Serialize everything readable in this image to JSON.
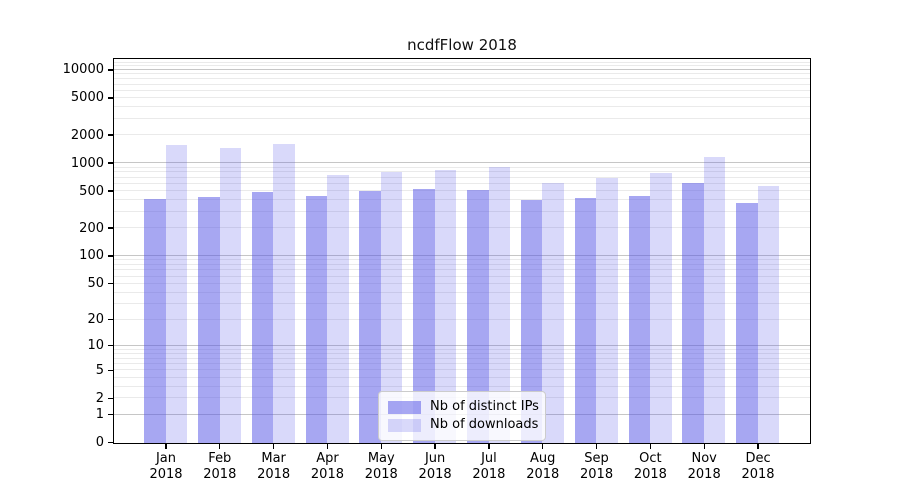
{
  "chart_data": {
    "type": "bar",
    "title": "ncdfFlow 2018",
    "categories": [
      "Jan",
      "Feb",
      "Mar",
      "Apr",
      "May",
      "Jun",
      "Jul",
      "Aug",
      "Sep",
      "Oct",
      "Nov",
      "Dec"
    ],
    "year_label": "2018",
    "series": [
      {
        "name": "Nb of distinct IPs",
        "color": "rgba(80,80,230,0.5)",
        "color_hex_on_white": "#a7a7f2",
        "values": [
          420,
          440,
          500,
          460,
          510,
          540,
          525,
          410,
          430,
          460,
          625,
          380
        ]
      },
      {
        "name": "Nb of downloads",
        "color": "rgba(80,80,230,0.22)",
        "color_hex_on_white": "#d8d8f9",
        "values": [
          1600,
          1480,
          1630,
          760,
          820,
          860,
          930,
          625,
          710,
          800,
          1190,
          590
        ]
      }
    ],
    "yscale": "log1p",
    "ylim": [
      0,
      13400
    ],
    "yticks": [
      0,
      1,
      2,
      5,
      10,
      20,
      50,
      100,
      200,
      500,
      1000,
      2000,
      5000,
      10000
    ],
    "grid": true,
    "grid_major_ticks": [
      1,
      10,
      100,
      1000,
      10000
    ],
    "legend_position": "lower center",
    "colors": {
      "grid_major": "#c6c6c6",
      "grid_minor": "#eaeaea",
      "spine": "#000000",
      "background": "#ffffff",
      "legend_border": "#cccccc"
    }
  }
}
